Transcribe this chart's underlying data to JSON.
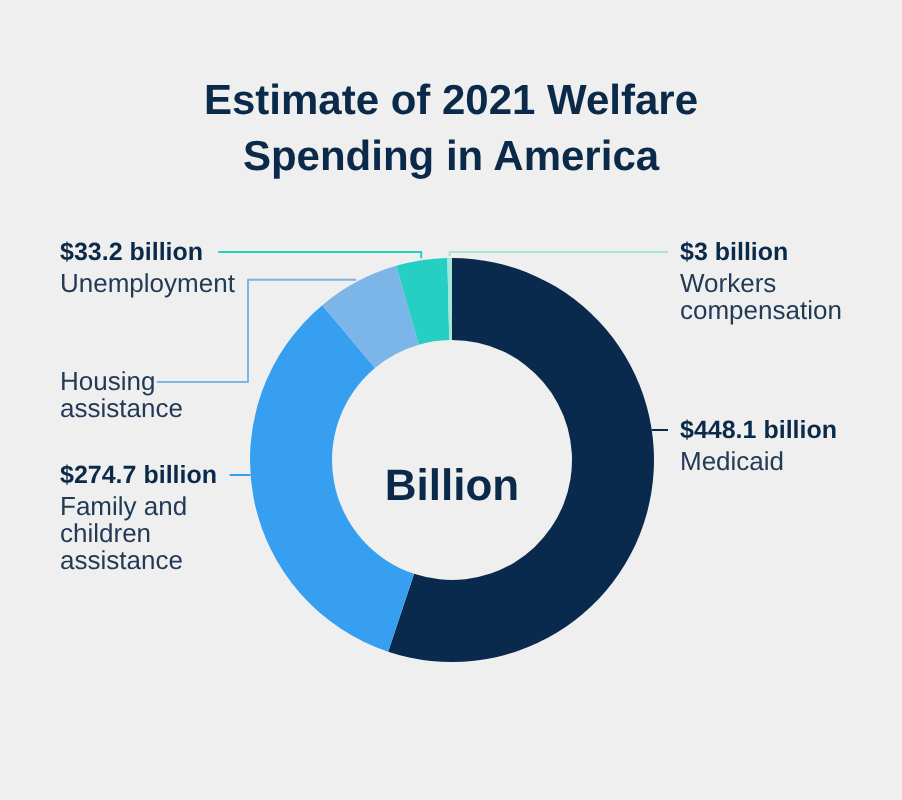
{
  "chart_data": {
    "type": "donut",
    "title": "Estimate of 2021 Welfare Spending in America",
    "categories": [
      "Medicaid",
      "Family and children assistance",
      "Housing assistance",
      "Unemployment",
      "Workers compensation"
    ],
    "values": [
      448.1,
      274.7,
      54,
      33.2,
      3
    ],
    "colors": [
      "#0a2a4d",
      "#379ff0",
      "#7cb6e8",
      "#25cfc2",
      "#a6e6d6"
    ],
    "value_labels": [
      "$448.1 billion",
      "$274.7 billion",
      null,
      "$33.2 billion",
      "$3 billion"
    ],
    "annotations": [
      "Billion"
    ]
  }
}
